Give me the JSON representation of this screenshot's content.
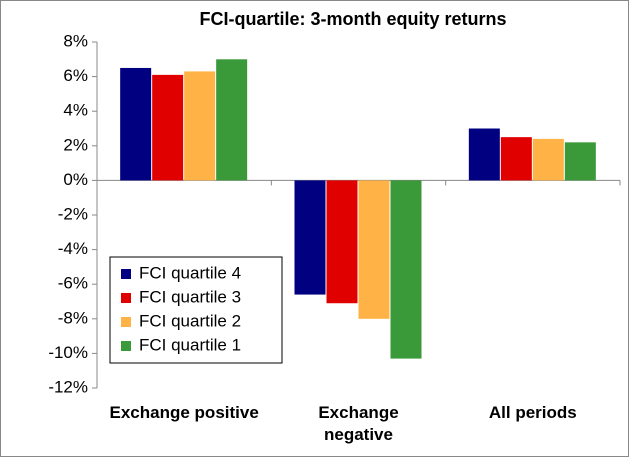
{
  "chart_data": {
    "type": "bar",
    "title": "FCI-quartile: 3-month  equity returns",
    "categories": [
      "Exchange positive",
      "Exchange negative",
      "All periods"
    ],
    "series": [
      {
        "name": "FCI quartile 4",
        "color": "#000080",
        "values": [
          6.5,
          -6.6,
          3.0
        ]
      },
      {
        "name": "FCI quartile 3",
        "color": "#e00000",
        "values": [
          6.1,
          -7.1,
          2.5
        ]
      },
      {
        "name": "FCI quartile 2",
        "color": "#ffb347",
        "values": [
          6.3,
          -8.0,
          2.4
        ]
      },
      {
        "name": "FCI quartile 1",
        "color": "#3a9a3a",
        "values": [
          7.0,
          -10.3,
          2.2
        ]
      }
    ],
    "ylim": [
      -12,
      8
    ],
    "yticks": [
      {
        "value": -12,
        "label": "-12%"
      },
      {
        "value": -10,
        "label": "-10%"
      },
      {
        "value": -8,
        "label": "-8%"
      },
      {
        "value": -6,
        "label": "-6%"
      },
      {
        "value": -4,
        "label": "-4%"
      },
      {
        "value": -2,
        "label": "-2%"
      },
      {
        "value": 0,
        "label": "0%"
      },
      {
        "value": 2,
        "label": "2%"
      },
      {
        "value": 4,
        "label": "4%"
      },
      {
        "value": 6,
        "label": "6%"
      },
      {
        "value": 8,
        "label": "8%"
      }
    ],
    "legend": "lower-left"
  }
}
